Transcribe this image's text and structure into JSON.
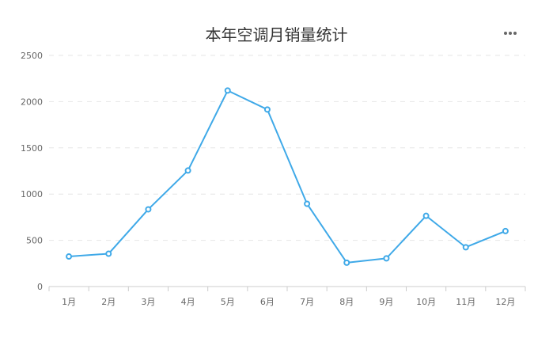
{
  "chart_data": {
    "type": "line",
    "title": "本年空调月销量统计",
    "categories": [
      "1月",
      "2月",
      "3月",
      "4月",
      "5月",
      "6月",
      "7月",
      "8月",
      "9月",
      "10月",
      "11月",
      "12月"
    ],
    "series": [
      {
        "values": [
          325,
          355,
          835,
          1255,
          2120,
          1915,
          895,
          258,
          305,
          765,
          425,
          600
        ]
      }
    ],
    "xlabel": "",
    "ylabel": "",
    "ylim": [
      0,
      2500
    ],
    "yticks": [
      0,
      500,
      1000,
      1500,
      2000,
      2500
    ],
    "grid": true,
    "colors": {
      "line": "#3fa9e8",
      "grid": "#e6e6e6",
      "axis": "#cccccc",
      "text": "#666666",
      "title": "#333333",
      "menu": "#666666"
    }
  },
  "menu_icon": "context-menu-icon"
}
